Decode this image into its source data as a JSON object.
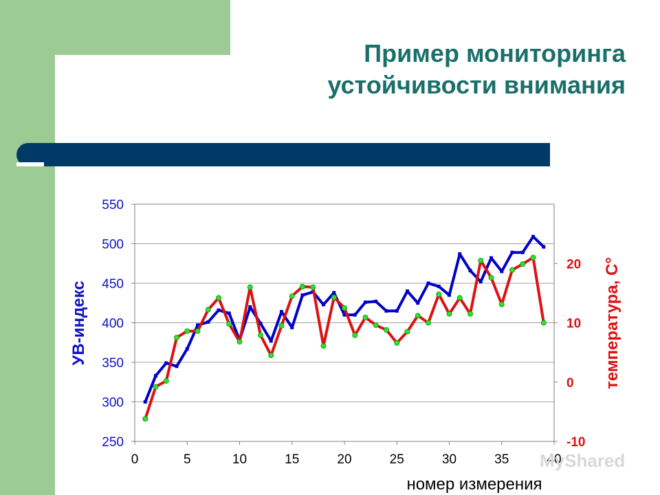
{
  "slide": {
    "title_line1": "Пример мониторинга",
    "title_line2": "устойчивости внимания",
    "watermark": "MyShared"
  },
  "colors": {
    "background_green": "#9ccc94",
    "title": "#1a6f6a",
    "rule": "#003a66",
    "series_blue": "#0000c8",
    "series_red": "#dd1111",
    "marker_green": "#33dd33"
  },
  "chart_data": {
    "type": "line",
    "title": "",
    "xlabel": "номер измерения",
    "ylabel": "УВ-индекс",
    "y2label": "температура, C°",
    "xlim": [
      0,
      40
    ],
    "ylim": [
      250,
      550
    ],
    "y2lim": [
      -10,
      30
    ],
    "x_ticks": [
      "0",
      "5",
      "10",
      "15",
      "20",
      "25",
      "30",
      "35",
      "40"
    ],
    "y_ticks": [
      "250",
      "300",
      "350",
      "400",
      "450",
      "500",
      "550"
    ],
    "y2_ticks": [
      "-10",
      "0",
      "10",
      "20"
    ],
    "grid": "horizontal",
    "series": [
      {
        "axis": "left",
        "x": [
          1,
          2,
          3,
          4,
          5,
          6,
          7,
          8,
          9,
          10,
          11,
          12,
          13,
          14,
          15,
          16,
          17,
          18,
          19,
          20,
          21,
          22,
          23,
          24,
          25,
          26,
          27,
          28,
          29,
          30,
          31,
          32,
          33,
          34,
          35,
          36,
          37,
          38,
          39
        ],
        "values": [
          300,
          333,
          349,
          345,
          367,
          397,
          401,
          416,
          412,
          378,
          420,
          399,
          377,
          414,
          394,
          435,
          439,
          423,
          438,
          410,
          410,
          426,
          427,
          415,
          415,
          440,
          425,
          450,
          446,
          435,
          487,
          466,
          452,
          482,
          465,
          489,
          489,
          509,
          496
        ]
      },
      {
        "axis": "right",
        "x": [
          1,
          2,
          3,
          4,
          5,
          6,
          7,
          8,
          9,
          10,
          11,
          12,
          13,
          14,
          15,
          16,
          17,
          18,
          19,
          20,
          21,
          22,
          23,
          24,
          25,
          26,
          27,
          28,
          29,
          30,
          31,
          32,
          33,
          34,
          35,
          36,
          37,
          38,
          39
        ],
        "values": [
          -6.2,
          -0.8,
          0.2,
          7.5,
          8.6,
          8.6,
          12.2,
          14.2,
          9.8,
          6.8,
          16.0,
          7.9,
          4.5,
          9.5,
          14.5,
          16.1,
          16.0,
          6.1,
          14.3,
          12.5,
          7.9,
          10.9,
          9.6,
          8.8,
          6.6,
          8.5,
          11.2,
          10.0,
          14.8,
          11.5,
          14.2,
          11.5,
          20.5,
          17.6,
          13.1,
          18.9,
          19.9,
          21.0,
          10.0
        ]
      }
    ]
  }
}
